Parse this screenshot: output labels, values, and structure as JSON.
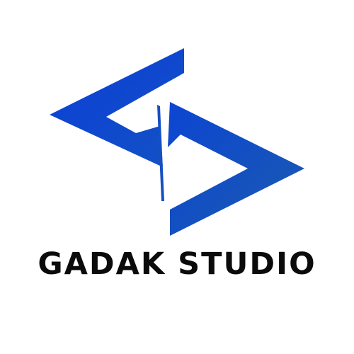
{
  "brand": {
    "name": "GADAK STUDIO",
    "text_color": "#0b0b0b",
    "gradient_start": "#0a3fd6",
    "gradient_end": "#1a5bb3",
    "background": "#ffffff"
  },
  "logo": {
    "icon": "chevron-arrows-logo-icon"
  }
}
